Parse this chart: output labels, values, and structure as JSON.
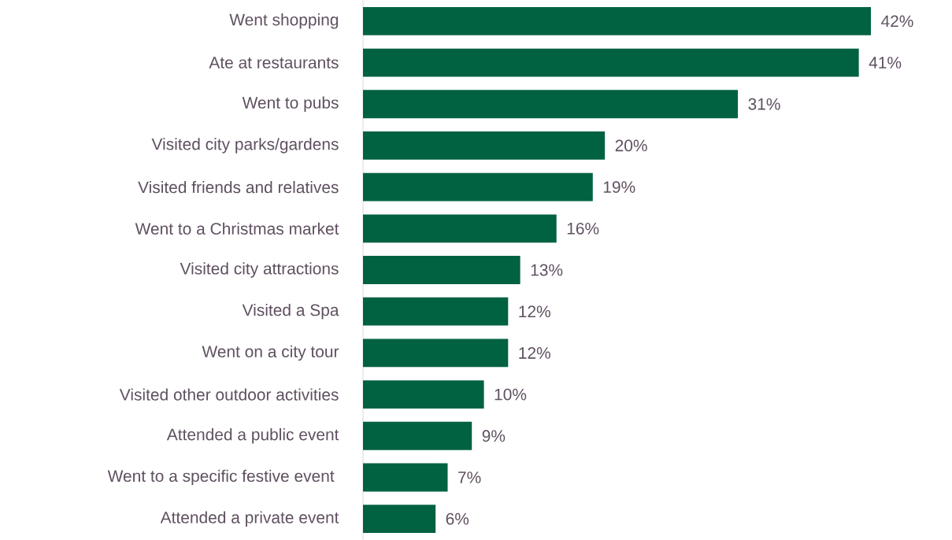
{
  "chart_data": {
    "type": "bar",
    "orientation": "horizontal",
    "color": "#006241",
    "categories": [
      "Went shopping",
      "Ate at restaurants",
      "Went to pubs",
      "Visited city parks/gardens",
      "Visited friends and relatives",
      "Went to a Christmas market",
      "Visited city attractions",
      "Visited a Spa",
      "Went on a city tour",
      "Visited other outdoor activities",
      "Attended a public event",
      "Went to a specific festive event ",
      "Attended a private event"
    ],
    "values": [
      42,
      41,
      31,
      20,
      19,
      16,
      13,
      12,
      12,
      10,
      9,
      7,
      6
    ],
    "value_labels": [
      "42%",
      "41%",
      "31%",
      "20%",
      "19%",
      "16%",
      "13%",
      "12%",
      "12%",
      "10%",
      "9%",
      "7%",
      "6%"
    ],
    "grid": false
  }
}
